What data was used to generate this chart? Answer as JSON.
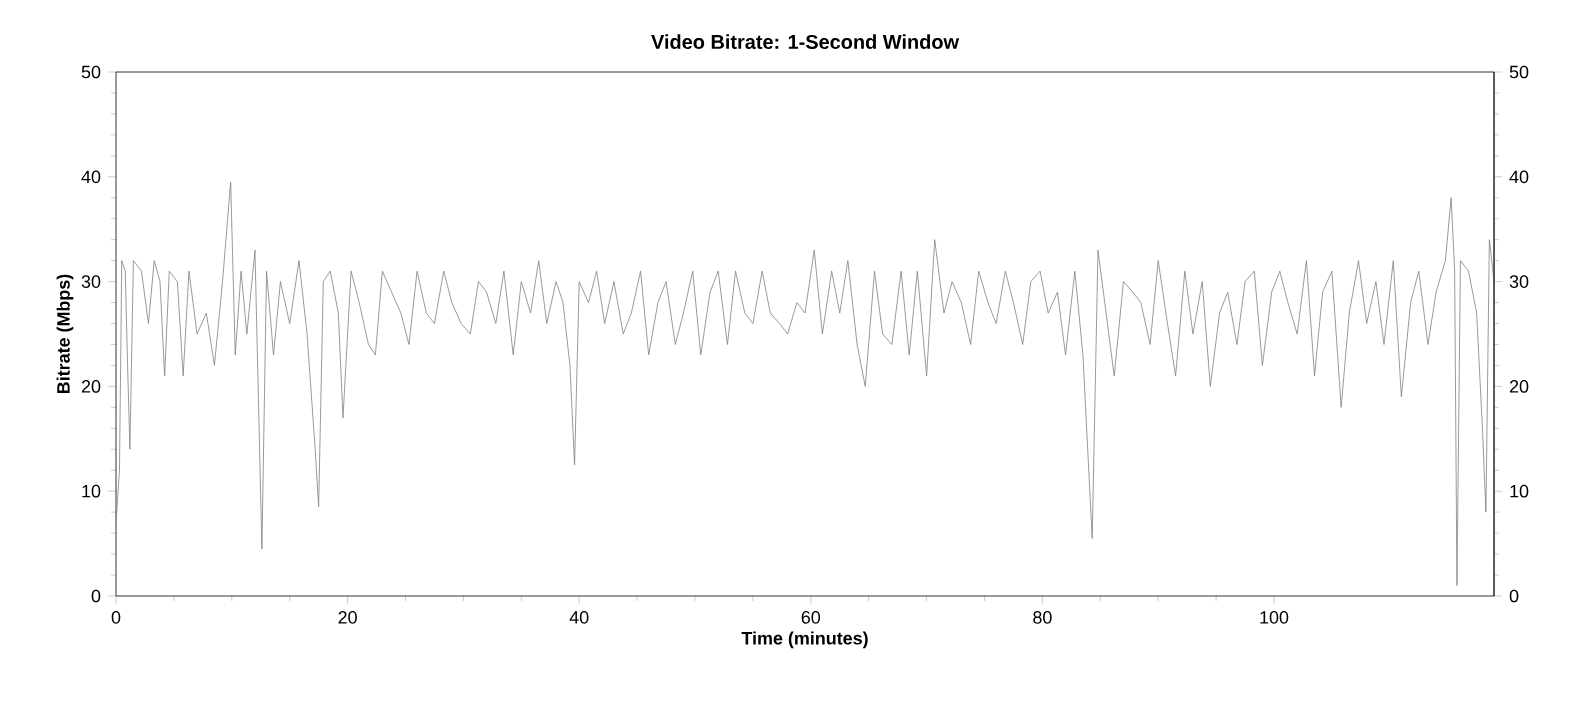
{
  "chart_data": {
    "type": "line",
    "title": "Video Bitrate: 1-Second Window",
    "xlabel": "Time (minutes)",
    "ylabel": "Bitrate (Mbps)",
    "xlim": [
      0,
      119
    ],
    "xticks": [
      0,
      20,
      40,
      60,
      80,
      100
    ],
    "ylim": [
      0,
      50
    ],
    "yticks": [
      0,
      10,
      20,
      30,
      40,
      50
    ],
    "y2lim": [
      0,
      50
    ],
    "y2ticks": [
      0,
      10,
      20,
      30,
      40,
      50
    ],
    "series": [
      {
        "color": "#808080",
        "x": [
          0,
          0.3,
          0.5,
          0.8,
          1.0,
          1.2,
          1.5,
          2.2,
          2.8,
          3.3,
          3.8,
          4.2,
          4.6,
          5.3,
          5.8,
          6.3,
          7.0,
          7.8,
          8.5,
          9.2,
          9.9,
          10.3,
          10.8,
          11.3,
          12.0,
          12.6,
          13.0,
          13.6,
          14.2,
          15.0,
          15.8,
          16.5,
          17.2,
          17.5,
          17.9,
          18.5,
          19.2,
          19.6,
          20.3,
          21,
          21.8,
          22.4,
          23,
          23.8,
          24.6,
          25.3,
          26,
          26.8,
          27.5,
          28.3,
          29,
          29.8,
          30.6,
          31.3,
          32,
          32.8,
          33.5,
          34.3,
          35,
          35.8,
          36.5,
          37.2,
          38,
          38.6,
          39.2,
          39.6,
          40,
          40.8,
          41.5,
          42.2,
          43,
          43.8,
          44.5,
          45.3,
          46,
          46.8,
          47.5,
          48.3,
          49,
          49.8,
          50.5,
          51.3,
          52,
          52.8,
          53.5,
          54.3,
          55,
          55.8,
          56.5,
          57.3,
          58,
          58.8,
          59.5,
          60.3,
          61,
          61.8,
          62.5,
          63.2,
          64,
          64.7,
          65.5,
          66.2,
          67,
          67.8,
          68.5,
          69.2,
          70,
          70.7,
          71.5,
          72.2,
          73,
          73.8,
          74.5,
          75.3,
          76,
          76.8,
          77.5,
          78.3,
          79,
          79.8,
          80.5,
          81.3,
          82,
          82.8,
          83.5,
          84.3,
          84.8,
          85.5,
          86.2,
          87,
          87.8,
          88.5,
          89.3,
          90,
          90.8,
          91.5,
          92.3,
          93,
          93.8,
          94.5,
          95.3,
          96,
          96.8,
          97.5,
          98.3,
          99,
          99.8,
          100.5,
          101.2,
          102,
          102.8,
          103.5,
          104.2,
          105,
          105.8,
          106.5,
          107.3,
          108,
          108.8,
          109.5,
          110.3,
          111,
          111.8,
          112.5,
          113.3,
          114,
          114.8,
          115.3,
          115.6,
          115.8,
          116.1,
          116.8,
          117.5,
          118,
          118.3,
          118.6,
          119
        ],
        "values": [
          7,
          12,
          32,
          31,
          22,
          14,
          32,
          31,
          26,
          32,
          30,
          21,
          31,
          30,
          21,
          31,
          25,
          27,
          22,
          30,
          39.5,
          23,
          31,
          25,
          33,
          4.5,
          31,
          23,
          30,
          26,
          32,
          25,
          14,
          8.5,
          30,
          31,
          27,
          17,
          31,
          28,
          24,
          23,
          31,
          29,
          27,
          24,
          31,
          27,
          26,
          31,
          28,
          26,
          25,
          30,
          29,
          26,
          31,
          23,
          30,
          27,
          32,
          26,
          30,
          28,
          22,
          12.5,
          30,
          28,
          31,
          26,
          30,
          25,
          27,
          31,
          23,
          28,
          30,
          24,
          27,
          31,
          23,
          29,
          31,
          24,
          31,
          27,
          26,
          31,
          27,
          26,
          25,
          28,
          27,
          33,
          25,
          31,
          27,
          32,
          24,
          20,
          31,
          25,
          24,
          31,
          23,
          31,
          21,
          34,
          27,
          30,
          28,
          24,
          31,
          28,
          26,
          31,
          28,
          24,
          30,
          31,
          27,
          29,
          23,
          31,
          23,
          5.5,
          33,
          27,
          21,
          30,
          29,
          28,
          24,
          32,
          26,
          21,
          31,
          25,
          30,
          20,
          27,
          29,
          24,
          30,
          31,
          22,
          29,
          31,
          28,
          25,
          32,
          21,
          29,
          31,
          18,
          27,
          32,
          26,
          30,
          24,
          32,
          19,
          28,
          31,
          24,
          29,
          32,
          38,
          31,
          1,
          32,
          31,
          27,
          16,
          8,
          34,
          30
        ]
      }
    ]
  }
}
